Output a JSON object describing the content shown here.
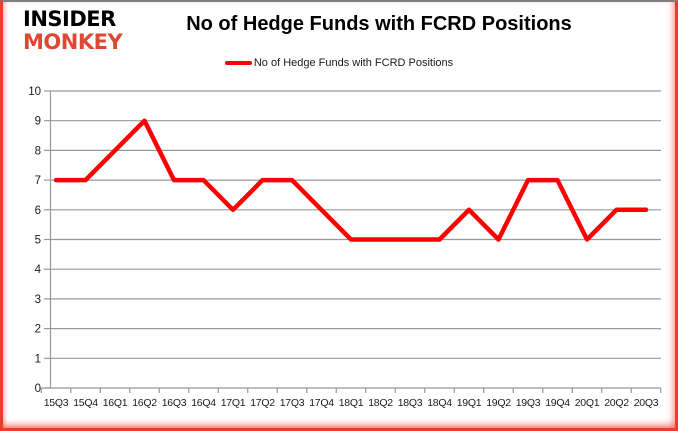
{
  "logo": {
    "line1": "INSIDER",
    "line2": "MONKEY",
    "accent_color": "#de4733"
  },
  "header": {
    "title": "No of Hedge Funds with FCRD Positions"
  },
  "legend": {
    "label": "No of Hedge Funds with FCRD Positions"
  },
  "chart_data": {
    "type": "line",
    "title": "No of Hedge Funds with FCRD Positions",
    "categories": [
      "15Q3",
      "15Q4",
      "16Q1",
      "16Q2",
      "16Q3",
      "16Q4",
      "17Q1",
      "17Q2",
      "17Q3",
      "17Q4",
      "18Q1",
      "18Q2",
      "18Q3",
      "18Q4",
      "19Q1",
      "19Q2",
      "19Q3",
      "19Q4",
      "20Q1",
      "20Q2",
      "20Q3"
    ],
    "series": [
      {
        "name": "No of Hedge Funds with FCRD Positions",
        "color": "#ff0000",
        "values": [
          7,
          7,
          8,
          9,
          7,
          7,
          6,
          7,
          7,
          6,
          5,
          5,
          5,
          5,
          6,
          5,
          7,
          7,
          5,
          6,
          6
        ]
      }
    ],
    "xlabel": "",
    "ylabel": "",
    "ylim": [
      0,
      10
    ],
    "ytick_step": 1,
    "grid": true,
    "legend_position": "top-center"
  },
  "colors": {
    "line": "#ff0000",
    "grid": "#999999",
    "axis": "#999999",
    "tick_text": "#1a1a1a",
    "frame_top": "#7f7f7f",
    "frame_red": "#ef3b2d",
    "background": "#ffffff"
  }
}
